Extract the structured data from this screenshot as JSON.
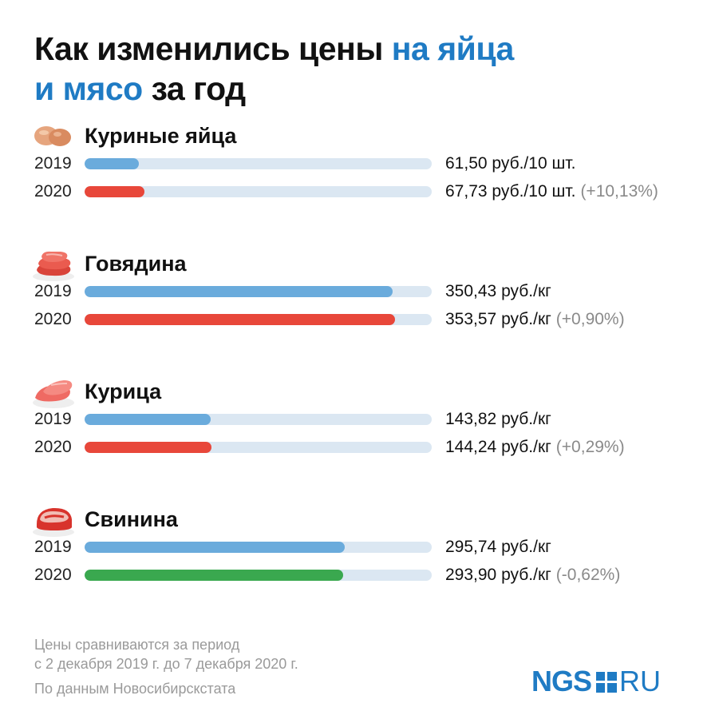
{
  "title": {
    "part1": "Как изменились цены ",
    "accent1": "на яйца",
    "accent2": "и мясо",
    "part2": " за год"
  },
  "colors": {
    "accent": "#1f7bc4",
    "bar_2019": "#6aabdc",
    "bar_increase": "#e8473a",
    "bar_decrease": "#3aa84f",
    "track": "#dbe7f2"
  },
  "chart_data": {
    "type": "bar",
    "orientation": "horizontal",
    "series_years": [
      "2019",
      "2020"
    ],
    "groups": [
      {
        "name": "Куриные яйца",
        "icon": "eggs-icon",
        "rows": [
          {
            "year": "2019",
            "value": 61.5,
            "label": "61,50 руб./10 шт.",
            "change": ""
          },
          {
            "year": "2020",
            "value": 67.73,
            "label": "67,73 руб./10 шт.",
            "change": "(+10,13%)"
          }
        ]
      },
      {
        "name": "Говядина",
        "icon": "beef-icon",
        "rows": [
          {
            "year": "2019",
            "value": 350.43,
            "label": "350,43 руб./кг",
            "change": ""
          },
          {
            "year": "2020",
            "value": 353.57,
            "label": "353,57 руб./кг",
            "change": "(+0,90%)"
          }
        ]
      },
      {
        "name": "Курица",
        "icon": "chicken-icon",
        "rows": [
          {
            "year": "2019",
            "value": 143.82,
            "label": "143,82 руб./кг",
            "change": ""
          },
          {
            "year": "2020",
            "value": 144.24,
            "label": "144,24 руб./кг",
            "change": "(+0,29%)"
          }
        ]
      },
      {
        "name": "Свинина",
        "icon": "pork-icon",
        "rows": [
          {
            "year": "2019",
            "value": 295.74,
            "label": "295,74 руб./кг",
            "change": ""
          },
          {
            "year": "2020",
            "value": 293.9,
            "label": "293,90 руб./кг",
            "change": "(-0,62%)"
          }
        ]
      }
    ],
    "xlim": [
      0,
      395
    ]
  },
  "footnote": {
    "line1": "Цены сравниваются за период",
    "line2": "с 2 декабря 2019 г. до 7 декабря 2020 г."
  },
  "source": "По данным Новосибирскстата",
  "logo": {
    "left": "NGS",
    "right": "RU"
  }
}
